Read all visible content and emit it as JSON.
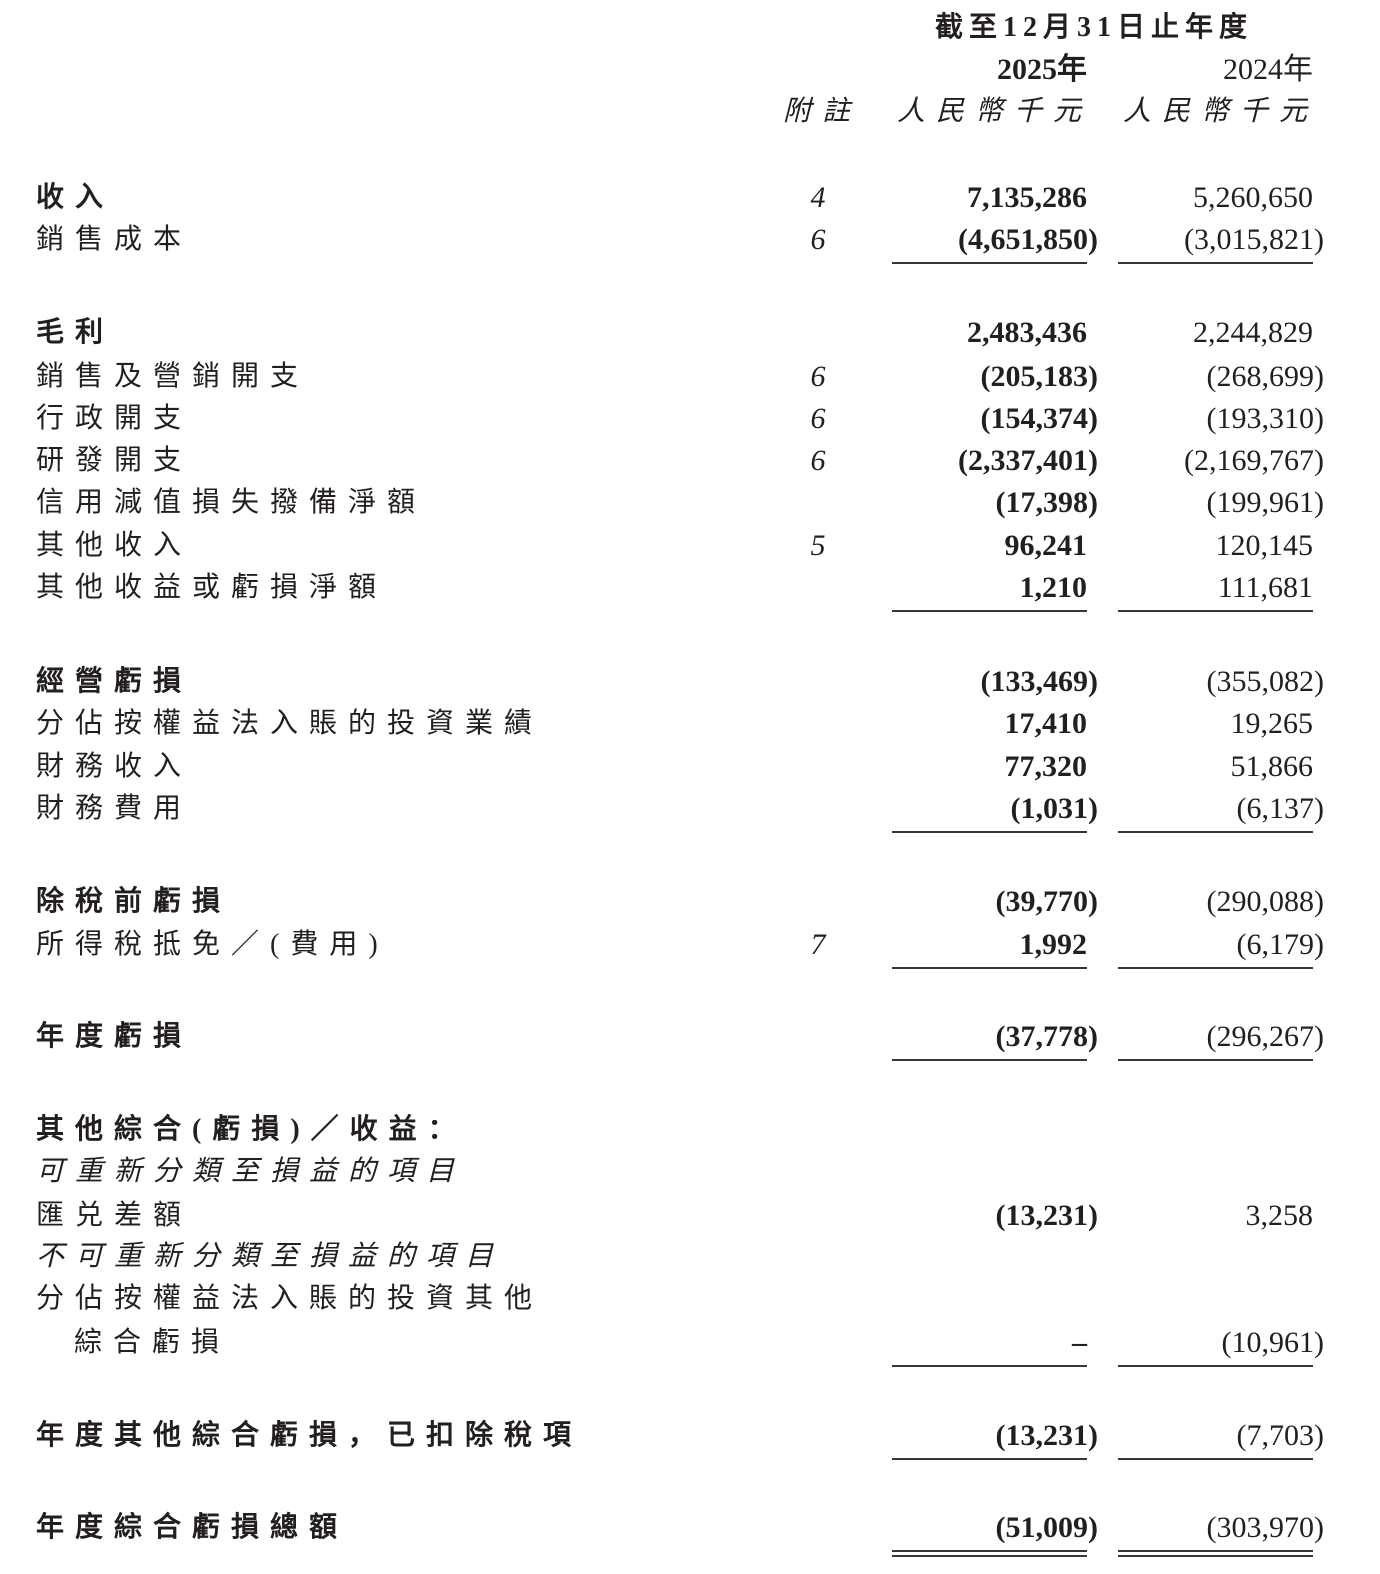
{
  "header": {
    "period": "截至12月31日止年度",
    "year_current": "2025年",
    "year_prior": "2024年",
    "note_label": "附註",
    "unit_current": "人民幣千元",
    "unit_prior": "人民幣千元"
  },
  "rows": [
    {
      "label": "收入",
      "note": "4",
      "current": "7,135,286",
      "prior": "5,260,650",
      "bold": true
    },
    {
      "label": "銷售成本",
      "note": "6",
      "current": "(4,651,850)",
      "prior": "(3,015,821)",
      "underline": true
    },
    {
      "label": "毛利",
      "note": "",
      "current": "2,483,436",
      "prior": "2,244,829",
      "bold": true
    },
    {
      "label": "銷售及營銷開支",
      "note": "6",
      "current": "(205,183)",
      "prior": "(268,699)"
    },
    {
      "label": "行政開支",
      "note": "6",
      "current": "(154,374)",
      "prior": "(193,310)"
    },
    {
      "label": "研發開支",
      "note": "6",
      "current": "(2,337,401)",
      "prior": "(2,169,767)"
    },
    {
      "label": "信用減值損失撥備淨額",
      "note": "",
      "current": "(17,398)",
      "prior": "(199,961)"
    },
    {
      "label": "其他收入",
      "note": "5",
      "current": "96,241",
      "prior": "120,145"
    },
    {
      "label": "其他收益或虧損淨額",
      "note": "",
      "current": "1,210",
      "prior": "111,681",
      "underline": true
    },
    {
      "label": "經營虧損",
      "note": "",
      "current": "(133,469)",
      "prior": "(355,082)",
      "bold": true
    },
    {
      "label": "分佔按權益法入賬的投資業績",
      "note": "",
      "current": "17,410",
      "prior": "19,265"
    },
    {
      "label": "財務收入",
      "note": "",
      "current": "77,320",
      "prior": "51,866"
    },
    {
      "label": "財務費用",
      "note": "",
      "current": "(1,031)",
      "prior": "(6,137)",
      "underline": true
    },
    {
      "label": "除稅前虧損",
      "note": "",
      "current": "(39,770)",
      "prior": "(290,088)",
      "bold": true
    },
    {
      "label": "所得稅抵免／(費用)",
      "note": "7",
      "current": "1,992",
      "prior": "(6,179)",
      "underline": true
    },
    {
      "label": "年度虧損",
      "note": "",
      "current": "(37,778)",
      "prior": "(296,267)",
      "bold": true,
      "underline": true
    },
    {
      "label": "其他綜合(虧損)／收益：",
      "note": "",
      "current": "",
      "prior": "",
      "bold": true
    },
    {
      "label": "可重新分類至損益的項目",
      "note": "",
      "current": "",
      "prior": "",
      "italic": true
    },
    {
      "label": "匯兑差額",
      "note": "",
      "current": "(13,231)",
      "prior": "3,258"
    },
    {
      "label": "不可重新分類至損益的項目",
      "note": "",
      "current": "",
      "prior": "",
      "italic": true
    },
    {
      "label": "分佔按權益法入賬的投資其他",
      "note": "",
      "current": "",
      "prior": ""
    },
    {
      "label": "綜合虧損",
      "note": "",
      "current": "–",
      "prior": "(10,961)",
      "indent": true,
      "underline": true
    },
    {
      "label": "年度其他綜合虧損，已扣除稅項",
      "note": "",
      "current": "(13,231)",
      "prior": "(7,703)",
      "bold": true,
      "underline": true
    },
    {
      "label": "年度綜合虧損總額",
      "note": "",
      "current": "(51,009)",
      "prior": "(303,970)",
      "bold": true,
      "double": true
    }
  ]
}
